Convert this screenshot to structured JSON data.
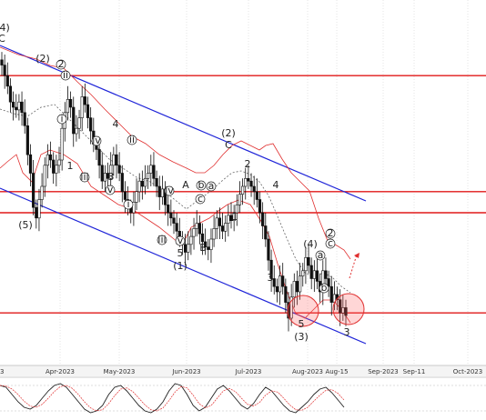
{
  "chart_data": {
    "type": "candlestick",
    "title": "",
    "x_ticks": [
      "Apr-2023",
      "May-2023",
      "Jun-2023",
      "Jul-2023",
      "Aug-2023",
      "Aug-15",
      "Sep-2023",
      "Sep-11",
      "Oct-2023"
    ],
    "price_range": [
      0,
      100
    ],
    "candles_close": [
      96,
      92,
      88,
      82,
      80,
      79,
      82,
      78,
      73,
      62,
      55,
      42,
      38,
      45,
      50,
      58,
      62,
      60,
      55,
      58,
      60,
      72,
      78,
      83,
      80,
      70,
      72,
      76,
      84,
      81,
      76,
      71,
      66,
      64,
      58,
      52,
      55,
      53,
      58,
      62,
      58,
      55,
      48,
      45,
      42,
      40,
      44,
      48,
      52,
      50,
      53,
      55,
      58,
      53,
      50,
      46,
      49,
      43,
      40,
      38,
      36,
      33,
      30,
      28,
      25,
      28,
      31,
      34,
      36,
      32,
      29,
      27,
      26,
      30,
      34,
      38,
      35,
      33,
      36,
      39,
      37,
      40,
      43,
      47,
      50,
      53,
      52,
      50,
      48,
      45,
      40,
      35,
      30,
      22,
      15,
      12,
      10,
      16,
      12,
      6,
      0,
      8,
      14,
      10,
      16,
      18,
      23,
      20,
      15,
      18,
      14,
      10,
      18,
      15,
      12,
      6,
      9,
      7,
      2,
      4,
      1
    ],
    "horizontal_levels": [
      92,
      48,
      40,
      2
    ],
    "wave_labels": [
      "(4)",
      "C",
      "2",
      "(2)",
      "4",
      "1",
      "3",
      "(5)",
      "ii",
      "i",
      "iv",
      "iii",
      "v",
      "ii",
      "i",
      "iv",
      "v",
      "iii",
      "A",
      "b",
      "c",
      "a",
      "B",
      "5",
      "(1)",
      "(2)",
      "C",
      "2",
      "1",
      "4",
      "3",
      "(4)",
      "c",
      "2",
      "a",
      "b",
      "5",
      "(3)",
      "3"
    ],
    "oscillator": {
      "name": "Stochastic",
      "range": [
        0,
        100
      ],
      "values": [
        85,
        80,
        60,
        40,
        25,
        20,
        30,
        50,
        70,
        85,
        90,
        80,
        60,
        40,
        20,
        10,
        15,
        30,
        60,
        80,
        85,
        70,
        50,
        30,
        15,
        10,
        20,
        40,
        70,
        90,
        85,
        60,
        30,
        15,
        25,
        50,
        75,
        85,
        70,
        50,
        30,
        20,
        35,
        60,
        80,
        70,
        50,
        30,
        15,
        10,
        25,
        40,
        60,
        75,
        80,
        65,
        45,
        25
      ]
    },
    "grid": true
  }
}
